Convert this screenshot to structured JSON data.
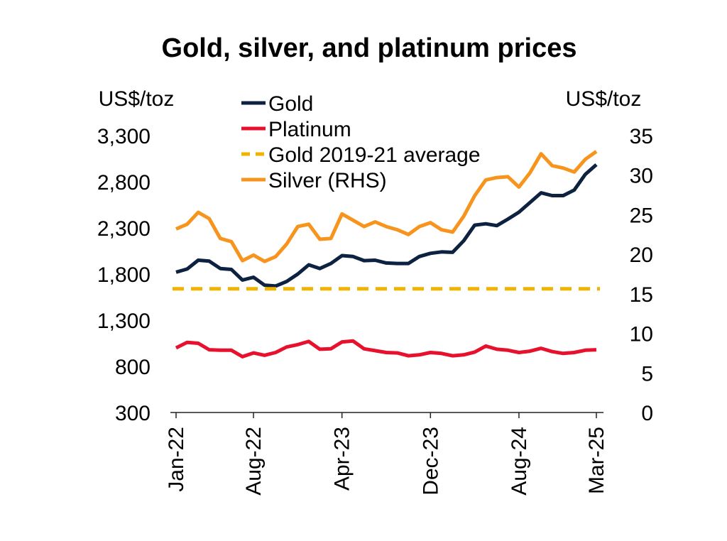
{
  "chart_data": {
    "type": "line",
    "title": "Gold, silver, and platinum prices",
    "ylabel_left": "US$/toz",
    "ylabel_right": "US$/toz",
    "ylim_left": [
      300,
      3300
    ],
    "yticks_left": [
      "3,300",
      "2,800",
      "2,300",
      "1,800",
      "1,300",
      "800",
      "300"
    ],
    "ylim_right": [
      0,
      35
    ],
    "yticks_right": [
      "35",
      "30",
      "25",
      "20",
      "15",
      "10",
      "5",
      "0"
    ],
    "x_tick_labels": [
      "Jan-22",
      "Aug-22",
      "Apr-23",
      "Dec-23",
      "Aug-24",
      "Mar-25"
    ],
    "x_tick_indices": [
      0,
      7,
      15,
      23,
      31,
      38
    ],
    "legend_placement": "top-left",
    "series": [
      {
        "name": "Gold",
        "axis": "left",
        "color": "#0d2240",
        "dash": false,
        "values": [
          1820,
          1855,
          1950,
          1940,
          1860,
          1850,
          1735,
          1765,
          1680,
          1670,
          1720,
          1800,
          1900,
          1860,
          1915,
          2000,
          1990,
          1945,
          1950,
          1920,
          1915,
          1915,
          1990,
          2025,
          2040,
          2035,
          2160,
          2330,
          2345,
          2325,
          2395,
          2470,
          2575,
          2680,
          2650,
          2650,
          2710,
          2880,
          2985
        ]
      },
      {
        "name": "Platinum",
        "axis": "left",
        "color": "#e8112d",
        "dash": false,
        "values": [
          1000,
          1060,
          1050,
          980,
          975,
          975,
          905,
          945,
          920,
          950,
          1010,
          1035,
          1070,
          985,
          990,
          1065,
          1075,
          990,
          970,
          950,
          945,
          915,
          925,
          950,
          940,
          915,
          925,
          955,
          1020,
          985,
          975,
          950,
          965,
          995,
          960,
          940,
          950,
          975,
          980
        ]
      },
      {
        "name": "Gold 2019-21 average",
        "axis": "left",
        "color": "#f2b300",
        "dash": true,
        "values": [
          1640,
          1640
        ]
      },
      {
        "name": "Silver (RHS)",
        "axis": "right",
        "color": "#f7941d",
        "dash": false,
        "values": [
          23.2,
          23.8,
          25.3,
          24.5,
          22.0,
          21.6,
          19.2,
          19.9,
          19.1,
          19.7,
          21.3,
          23.5,
          23.8,
          21.9,
          22.0,
          25.1,
          24.3,
          23.5,
          24.1,
          23.5,
          23.1,
          22.5,
          23.5,
          24.0,
          23.1,
          22.8,
          24.8,
          27.4,
          29.4,
          29.7,
          29.8,
          28.5,
          30.3,
          32.7,
          31.2,
          30.9,
          30.4,
          32.0,
          33.0
        ]
      }
    ]
  }
}
